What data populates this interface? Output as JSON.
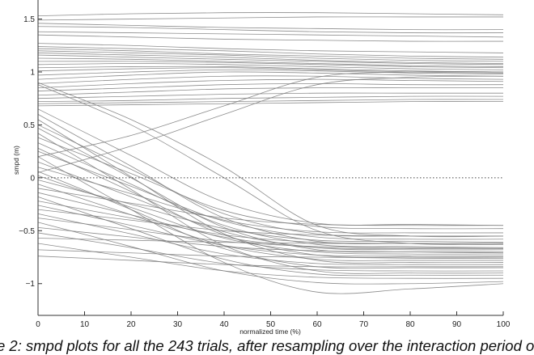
{
  "caption": "e 2: smpd plots for all the 243 trials, after resampling over the interaction period o",
  "chart_data": {
    "type": "line",
    "xlabel": "normalized time (%)",
    "ylabel": "smpd (m)",
    "xlim": [
      0,
      100
    ],
    "ylim": [
      -1.3,
      1.68
    ],
    "xticks": [
      0,
      10,
      20,
      30,
      40,
      50,
      60,
      70,
      80,
      90,
      100
    ],
    "yticks": [
      -1,
      -0.5,
      0,
      0.5,
      1,
      1.5
    ],
    "ytick_labels": [
      "−1",
      "−0.5",
      "0",
      "0.5",
      "1",
      "1.5"
    ],
    "grid": false,
    "reference_line": {
      "y": 0,
      "style": "dotted"
    },
    "line_color": "#808080",
    "x": [
      0,
      20,
      40,
      60,
      80,
      100
    ],
    "series": [
      {
        "values": [
          1.53,
          1.55,
          1.56,
          1.56,
          1.55,
          1.54
        ]
      },
      {
        "values": [
          1.49,
          1.5,
          1.51,
          1.52,
          1.52,
          1.52
        ]
      },
      {
        "values": [
          1.46,
          1.44,
          1.42,
          1.41,
          1.4,
          1.4
        ]
      },
      {
        "values": [
          1.43,
          1.42,
          1.4,
          1.38,
          1.37,
          1.37
        ]
      },
      {
        "values": [
          1.38,
          1.37,
          1.36,
          1.35,
          1.34,
          1.33
        ]
      },
      {
        "values": [
          1.35,
          1.33,
          1.31,
          1.3,
          1.29,
          1.29
        ]
      },
      {
        "values": [
          1.27,
          1.25,
          1.22,
          1.2,
          1.19,
          1.18
        ]
      },
      {
        "values": [
          1.24,
          1.22,
          1.2,
          1.17,
          1.15,
          1.14
        ]
      },
      {
        "values": [
          1.22,
          1.2,
          1.17,
          1.15,
          1.13,
          1.12
        ]
      },
      {
        "values": [
          1.2,
          1.18,
          1.16,
          1.13,
          1.11,
          1.1
        ]
      },
      {
        "values": [
          1.18,
          1.16,
          1.14,
          1.11,
          1.09,
          1.08
        ]
      },
      {
        "values": [
          1.16,
          1.14,
          1.12,
          1.1,
          1.08,
          1.07
        ]
      },
      {
        "values": [
          1.13,
          1.12,
          1.1,
          1.08,
          1.06,
          1.05
        ]
      },
      {
        "values": [
          1.1,
          1.1,
          1.09,
          1.07,
          1.05,
          1.04
        ]
      },
      {
        "values": [
          1.07,
          1.08,
          1.07,
          1.05,
          1.03,
          1.02
        ]
      },
      {
        "values": [
          1.04,
          1.05,
          1.05,
          1.03,
          1.01,
          1.0
        ]
      },
      {
        "values": [
          1.01,
          1.03,
          1.04,
          1.02,
          1.0,
          0.99
        ]
      },
      {
        "values": [
          0.97,
          1.0,
          1.02,
          1.01,
          0.99,
          0.98
        ]
      },
      {
        "values": [
          0.93,
          0.97,
          1.0,
          0.99,
          0.97,
          0.96
        ]
      },
      {
        "values": [
          0.89,
          0.93,
          0.96,
          0.96,
          0.94,
          0.93
        ]
      },
      {
        "values": [
          0.85,
          0.89,
          0.92,
          0.93,
          0.92,
          0.91
        ]
      },
      {
        "values": [
          0.82,
          0.85,
          0.88,
          0.89,
          0.88,
          0.88
        ]
      },
      {
        "values": [
          0.78,
          0.81,
          0.84,
          0.85,
          0.85,
          0.85
        ]
      },
      {
        "values": [
          0.75,
          0.77,
          0.79,
          0.8,
          0.8,
          0.8
        ]
      },
      {
        "values": [
          0.72,
          0.73,
          0.75,
          0.76,
          0.77,
          0.77
        ]
      },
      {
        "values": [
          0.7,
          0.71,
          0.72,
          0.73,
          0.74,
          0.74
        ]
      },
      {
        "values": [
          0.68,
          0.69,
          0.7,
          0.71,
          0.72,
          0.72
        ]
      },
      {
        "values": [
          0.2,
          0.4,
          0.68,
          0.95,
          1.0,
          1.0
        ]
      },
      {
        "values": [
          0.05,
          0.3,
          0.6,
          0.88,
          0.95,
          0.96
        ]
      },
      {
        "values": [
          0.9,
          0.55,
          0.1,
          -0.45,
          -0.55,
          -0.55
        ]
      },
      {
        "values": [
          0.88,
          0.5,
          0.0,
          -0.5,
          -0.62,
          -0.63
        ]
      },
      {
        "values": [
          0.65,
          0.21,
          -0.23,
          -0.43,
          -0.44,
          -0.45
        ]
      },
      {
        "values": [
          0.6,
          0.11,
          -0.38,
          -0.6,
          -0.62,
          -0.62
        ]
      },
      {
        "values": [
          0.55,
          0.01,
          -0.53,
          -0.78,
          -0.8,
          -0.8
        ]
      },
      {
        "values": [
          0.5,
          0.08,
          -0.34,
          -0.53,
          -0.55,
          -0.55
        ]
      },
      {
        "values": [
          0.47,
          0.0,
          -0.47,
          -0.68,
          -0.7,
          -0.71
        ]
      },
      {
        "values": [
          0.42,
          -0.11,
          -0.64,
          -0.88,
          -0.9,
          -0.9
        ]
      },
      {
        "values": [
          0.38,
          0.04,
          -0.31,
          -0.46,
          -0.48,
          -0.48
        ]
      },
      {
        "values": [
          0.33,
          -0.06,
          -0.45,
          -0.63,
          -0.65,
          -0.66
        ]
      },
      {
        "values": [
          0.28,
          -0.13,
          -0.54,
          -0.73,
          -0.75,
          -0.75
        ]
      },
      {
        "values": [
          0.25,
          -0.08,
          -0.41,
          -0.56,
          -0.58,
          -0.58
        ]
      },
      {
        "values": [
          0.2,
          -0.3,
          -0.8,
          -1.08,
          -1.05,
          -1.0
        ]
      },
      {
        "values": [
          0.15,
          -0.18,
          -0.51,
          -0.66,
          -0.68,
          -0.68
        ]
      },
      {
        "values": [
          0.1,
          -0.15,
          -0.4,
          -0.51,
          -0.52,
          -0.52
        ]
      },
      {
        "values": [
          0.06,
          -0.3,
          -0.67,
          -0.84,
          -0.85,
          -0.85
        ]
      },
      {
        "values": [
          0.02,
          -0.28,
          -0.57,
          -0.7,
          -0.72,
          -0.72
        ]
      },
      {
        "values": [
          -0.02,
          -0.25,
          -0.48,
          -0.59,
          -0.6,
          -0.61
        ]
      },
      {
        "values": [
          -0.06,
          -0.35,
          -0.64,
          -0.77,
          -0.78,
          -0.78
        ]
      },
      {
        "values": [
          -0.1,
          -0.24,
          -0.38,
          -0.44,
          -0.45,
          -0.45
        ]
      },
      {
        "values": [
          -0.14,
          -0.35,
          -0.56,
          -0.66,
          -0.67,
          -0.67
        ]
      },
      {
        "values": [
          -0.18,
          -0.48,
          -0.77,
          -0.91,
          -0.92,
          -0.92
        ]
      },
      {
        "values": [
          -0.22,
          -0.38,
          -0.54,
          -0.61,
          -0.62,
          -0.62
        ]
      },
      {
        "values": [
          -0.26,
          -0.45,
          -0.64,
          -0.73,
          -0.74,
          -0.74
        ]
      },
      {
        "values": [
          -0.3,
          -0.4,
          -0.5,
          -0.54,
          -0.55,
          -0.55
        ]
      },
      {
        "values": [
          -0.34,
          -0.53,
          -0.72,
          -0.81,
          -0.82,
          -0.82
        ]
      },
      {
        "values": [
          -0.38,
          -0.49,
          -0.6,
          -0.65,
          -0.66,
          -0.66
        ]
      },
      {
        "values": [
          -0.42,
          -0.65,
          -0.88,
          -0.99,
          -1.0,
          -0.98
        ]
      },
      {
        "values": [
          -0.47,
          -0.56,
          -0.65,
          -0.69,
          -0.7,
          -0.7
        ]
      },
      {
        "values": [
          -0.52,
          -0.66,
          -0.81,
          -0.87,
          -0.88,
          -0.88
        ]
      },
      {
        "values": [
          -0.57,
          -0.59,
          -0.61,
          -0.62,
          -0.62,
          -0.62
        ]
      },
      {
        "values": [
          -0.62,
          -0.75,
          -0.88,
          -0.94,
          -0.95,
          -0.95
        ]
      },
      {
        "values": [
          -0.68,
          -0.71,
          -0.74,
          -0.75,
          -0.76,
          -0.76
        ]
      },
      {
        "values": [
          -0.74,
          -0.78,
          -0.82,
          -0.84,
          -0.84,
          -0.84
        ]
      }
    ]
  }
}
